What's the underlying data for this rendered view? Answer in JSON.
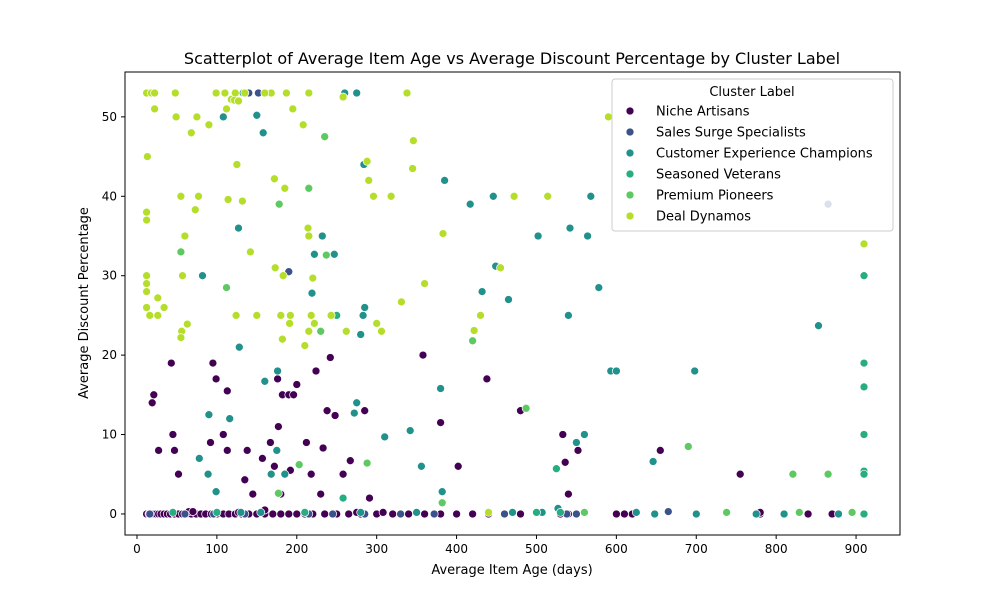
{
  "chart_data": {
    "type": "scatter",
    "title": "Scatterplot of Average Item Age vs Average Discount Percentage by Cluster Label",
    "xlabel": "Average Item Age (days)",
    "ylabel": "Average Discount Percentage",
    "xlim": [
      -15,
      955
    ],
    "ylim": [
      -2.65,
      55.65
    ],
    "xticks": [
      0,
      100,
      200,
      300,
      400,
      500,
      600,
      700,
      800,
      900
    ],
    "yticks": [
      0,
      10,
      20,
      30,
      40,
      50
    ],
    "grid": false,
    "legend": {
      "title": "Cluster Label",
      "placement": "top-right"
    },
    "series": [
      {
        "name": "Niche Artisans",
        "color": "#440154",
        "points": [
          [
            12,
            0
          ],
          [
            15,
            0
          ],
          [
            18,
            0
          ],
          [
            21,
            0
          ],
          [
            24,
            0
          ],
          [
            27,
            0
          ],
          [
            30,
            0
          ],
          [
            34,
            0
          ],
          [
            38,
            0
          ],
          [
            42,
            0
          ],
          [
            47,
            0
          ],
          [
            52,
            0
          ],
          [
            57,
            0
          ],
          [
            62,
            0
          ],
          [
            68,
            0
          ],
          [
            74,
            0
          ],
          [
            80,
            0
          ],
          [
            86,
            0
          ],
          [
            93,
            0
          ],
          [
            100,
            0
          ],
          [
            108,
            0
          ],
          [
            115,
            0
          ],
          [
            123,
            0
          ],
          [
            131,
            0
          ],
          [
            140,
            0
          ],
          [
            150,
            0
          ],
          [
            160,
            0
          ],
          [
            170,
            0
          ],
          [
            180,
            0
          ],
          [
            190,
            0
          ],
          [
            200,
            0
          ],
          [
            210,
            0
          ],
          [
            220,
            0
          ],
          [
            235,
            0
          ],
          [
            250,
            0
          ],
          [
            265,
            0
          ],
          [
            280,
            0
          ],
          [
            300,
            0
          ],
          [
            320,
            0
          ],
          [
            340,
            0
          ],
          [
            360,
            0
          ],
          [
            380,
            0
          ],
          [
            400,
            0
          ],
          [
            420,
            0
          ],
          [
            440,
            0
          ],
          [
            460,
            0
          ],
          [
            480,
            0
          ],
          [
            530,
            0
          ],
          [
            540,
            0
          ],
          [
            600,
            0
          ],
          [
            610,
            0
          ],
          [
            620,
            0
          ],
          [
            780,
            0
          ],
          [
            840,
            0
          ],
          [
            870,
            0
          ],
          [
            19,
            14
          ],
          [
            21,
            15
          ],
          [
            27,
            8
          ],
          [
            43,
            19
          ],
          [
            45,
            10
          ],
          [
            47,
            8
          ],
          [
            52,
            5
          ],
          [
            65,
            0.3
          ],
          [
            70,
            0.3
          ],
          [
            95,
            19
          ],
          [
            92,
            9
          ],
          [
            99,
            17
          ],
          [
            108,
            10
          ],
          [
            113,
            15.5
          ],
          [
            113,
            8
          ],
          [
            127,
            0.2
          ],
          [
            135,
            4.3
          ],
          [
            138,
            8
          ],
          [
            145,
            2.5
          ],
          [
            157,
            7
          ],
          [
            160,
            0.5
          ],
          [
            167,
            9
          ],
          [
            172,
            6
          ],
          [
            177,
            11
          ],
          [
            176,
            17
          ],
          [
            180,
            2.5
          ],
          [
            182,
            15
          ],
          [
            190,
            15
          ],
          [
            192,
            5.5
          ],
          [
            196,
            15
          ],
          [
            200,
            16.3
          ],
          [
            210,
            0.3
          ],
          [
            212,
            9
          ],
          [
            218,
            5
          ],
          [
            224,
            18
          ],
          [
            230,
            2.5
          ],
          [
            233,
            8.3
          ],
          [
            238,
            13
          ],
          [
            242,
            19.7
          ],
          [
            248,
            12.4
          ],
          [
            258,
            5
          ],
          [
            267,
            6.7
          ],
          [
            275,
            0.2
          ],
          [
            285,
            13
          ],
          [
            291,
            2
          ],
          [
            308,
            0.2
          ],
          [
            358,
            20
          ],
          [
            380,
            11.5
          ],
          [
            402,
            6
          ],
          [
            438,
            17
          ],
          [
            480,
            13
          ],
          [
            533,
            10
          ],
          [
            536,
            6.5
          ],
          [
            540,
            2.5
          ],
          [
            552,
            8
          ],
          [
            655,
            8
          ],
          [
            755,
            5
          ],
          [
            780,
            0.2
          ]
        ]
      },
      {
        "name": "Sales Surge Specialists",
        "color": "#3b528b",
        "points": [
          [
            16,
            0
          ],
          [
            60,
            0
          ],
          [
            96,
            0
          ],
          [
            135,
            0
          ],
          [
            140,
            53
          ],
          [
            152,
            53
          ],
          [
            190,
            30.5
          ],
          [
            215,
            0
          ],
          [
            245,
            0
          ],
          [
            285,
            0
          ],
          [
            330,
            0
          ],
          [
            372,
            0
          ],
          [
            460,
            0
          ],
          [
            538,
            0
          ],
          [
            550,
            0
          ],
          [
            665,
            0.3
          ],
          [
            865,
            39
          ]
        ]
      },
      {
        "name": "Customer Experience Champions",
        "color": "#21918c",
        "points": [
          [
            108,
            50
          ],
          [
            133,
            53
          ],
          [
            150,
            50.2
          ],
          [
            158,
            48
          ],
          [
            127,
            36
          ],
          [
            82,
            30
          ],
          [
            128,
            21
          ],
          [
            78,
            7
          ],
          [
            99,
            2.8
          ],
          [
            90,
            12.5
          ],
          [
            116,
            12
          ],
          [
            89,
            5
          ],
          [
            130,
            0.2
          ],
          [
            155,
            0.2
          ],
          [
            160,
            16.7
          ],
          [
            168,
            5
          ],
          [
            176,
            18
          ],
          [
            175,
            8
          ],
          [
            185,
            5
          ],
          [
            210,
            0.2
          ],
          [
            219,
            27.8
          ],
          [
            222,
            32.7
          ],
          [
            232,
            35
          ],
          [
            247,
            32.7
          ],
          [
            260,
            53
          ],
          [
            275,
            53
          ],
          [
            280,
            22.6
          ],
          [
            284,
            44
          ],
          [
            285,
            26
          ],
          [
            283,
            25
          ],
          [
            280,
            0.2
          ],
          [
            272,
            12.7
          ],
          [
            275,
            14
          ],
          [
            310,
            9.7
          ],
          [
            342,
            10.5
          ],
          [
            350,
            0.2
          ],
          [
            356,
            6
          ],
          [
            380,
            15.8
          ],
          [
            382,
            2.8
          ],
          [
            385,
            42
          ],
          [
            417,
            39
          ],
          [
            432,
            28
          ],
          [
            446,
            40
          ],
          [
            449,
            31.2
          ],
          [
            465,
            27
          ],
          [
            470,
            0.2
          ],
          [
            502,
            35
          ],
          [
            507,
            0.2
          ],
          [
            527,
            0.7
          ],
          [
            540,
            25
          ],
          [
            542,
            36
          ],
          [
            550,
            9
          ],
          [
            560,
            10
          ],
          [
            564,
            35
          ],
          [
            568,
            40
          ],
          [
            578,
            28.5
          ],
          [
            593,
            18
          ],
          [
            600,
            18
          ],
          [
            625,
            0.2
          ],
          [
            646,
            6.6
          ],
          [
            648,
            0
          ],
          [
            698,
            18
          ],
          [
            700,
            0
          ],
          [
            775,
            0
          ],
          [
            810,
            0
          ],
          [
            853,
            23.7
          ],
          [
            878,
            0
          ]
        ]
      },
      {
        "name": "Seasoned Veterans",
        "color": "#27ad81",
        "points": [
          [
            45,
            0.2
          ],
          [
            100,
            0.2
          ],
          [
            210,
            0.2
          ],
          [
            250,
            25
          ],
          [
            258,
            2
          ],
          [
            500,
            0.2
          ],
          [
            530,
            0.2
          ],
          [
            525,
            5.7
          ],
          [
            910,
            30
          ],
          [
            910,
            19
          ],
          [
            910,
            16
          ],
          [
            910,
            10
          ],
          [
            910,
            5.4
          ],
          [
            910,
            5
          ],
          [
            910,
            0
          ]
        ]
      },
      {
        "name": "Premium Pioneers",
        "color": "#5ec962",
        "points": [
          [
            55,
            33
          ],
          [
            112,
            28.5
          ],
          [
            178,
            39
          ],
          [
            215,
            41
          ],
          [
            235,
            47.5
          ],
          [
            237,
            32.6
          ],
          [
            230,
            23
          ],
          [
            203,
            6.2
          ],
          [
            177,
            2.6
          ],
          [
            288,
            6.4
          ],
          [
            382,
            1.4
          ],
          [
            420,
            21.8
          ],
          [
            487,
            13.3
          ],
          [
            560,
            0.2
          ],
          [
            690,
            8.5
          ],
          [
            738,
            0.2
          ],
          [
            821,
            5
          ],
          [
            829,
            0.2
          ],
          [
            865,
            5
          ],
          [
            895,
            0.2
          ]
        ]
      },
      {
        "name": "Deal Dynamos",
        "color": "#b5de2b",
        "points": [
          [
            12,
            53
          ],
          [
            18,
            53
          ],
          [
            22,
            53
          ],
          [
            13,
            45
          ],
          [
            12,
            38
          ],
          [
            12,
            37
          ],
          [
            12,
            30
          ],
          [
            12,
            29
          ],
          [
            12,
            28
          ],
          [
            12,
            26
          ],
          [
            16,
            25
          ],
          [
            22,
            51
          ],
          [
            26,
            27.2
          ],
          [
            26,
            25
          ],
          [
            34,
            26
          ],
          [
            48,
            53
          ],
          [
            49,
            50
          ],
          [
            55,
            40
          ],
          [
            57,
            30
          ],
          [
            56,
            23
          ],
          [
            55,
            22.2
          ],
          [
            59,
            35
          ],
          [
            60,
            35
          ],
          [
            63,
            23.9
          ],
          [
            68,
            48
          ],
          [
            73,
            38.3
          ],
          [
            75,
            50
          ],
          [
            77,
            40
          ],
          [
            90,
            49
          ],
          [
            99,
            53
          ],
          [
            110,
            53
          ],
          [
            112,
            51
          ],
          [
            118,
            52.2
          ],
          [
            123,
            53
          ],
          [
            122,
            52.1
          ],
          [
            127,
            52
          ],
          [
            135,
            53
          ],
          [
            168,
            53
          ],
          [
            187,
            53
          ],
          [
            114,
            39.6
          ],
          [
            124,
            25
          ],
          [
            125,
            44
          ],
          [
            132,
            39.4
          ],
          [
            142,
            33
          ],
          [
            150,
            25
          ],
          [
            160,
            53
          ],
          [
            172,
            42.2
          ],
          [
            173,
            31
          ],
          [
            180,
            25
          ],
          [
            182,
            22
          ],
          [
            183,
            30
          ],
          [
            185,
            41
          ],
          [
            191,
            24
          ],
          [
            192,
            25
          ],
          [
            195,
            51
          ],
          [
            208,
            49
          ],
          [
            210,
            21.2
          ],
          [
            215,
            53
          ],
          [
            214,
            36
          ],
          [
            215,
            35
          ],
          [
            215,
            23
          ],
          [
            218,
            25
          ],
          [
            220,
            29.7
          ],
          [
            222,
            24
          ],
          [
            243,
            25
          ],
          [
            258,
            52.5
          ],
          [
            262,
            23
          ],
          [
            288,
            44.4
          ],
          [
            290,
            42
          ],
          [
            296,
            40
          ],
          [
            300,
            24
          ],
          [
            306,
            23
          ],
          [
            318,
            40
          ],
          [
            331,
            26.7
          ],
          [
            338,
            53
          ],
          [
            345,
            43.5
          ],
          [
            346,
            47
          ],
          [
            360,
            29
          ],
          [
            383,
            35.3
          ],
          [
            422,
            23.1
          ],
          [
            430,
            25
          ],
          [
            440,
            0.2
          ],
          [
            455,
            31
          ],
          [
            472,
            40
          ],
          [
            514,
            40
          ],
          [
            590,
            50
          ],
          [
            910,
            34
          ]
        ]
      }
    ]
  }
}
